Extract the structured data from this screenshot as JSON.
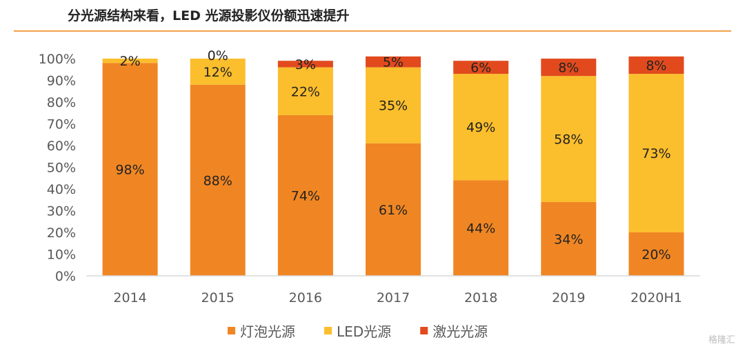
{
  "title": "分光源结构来看，LED 光源投影仪份额迅速提升",
  "watermark": "格隆汇",
  "chart_data": {
    "type": "bar",
    "stacked": true,
    "categories": [
      "2014",
      "2015",
      "2016",
      "2017",
      "2018",
      "2019",
      "2020H1"
    ],
    "series": [
      {
        "name": "灯泡光源",
        "color": "#f08623",
        "values": [
          98,
          88,
          74,
          61,
          44,
          34,
          20
        ],
        "labels": [
          "98%",
          "88%",
          "74%",
          "61%",
          "44%",
          "34%",
          "20%"
        ]
      },
      {
        "name": "LED光源",
        "color": "#fbbe2c",
        "values": [
          2,
          12,
          22,
          35,
          49,
          58,
          73
        ],
        "labels": [
          "2%",
          "12%",
          "22%",
          "35%",
          "49%",
          "58%",
          "73%"
        ]
      },
      {
        "name": "激光光源",
        "color": "#e24a1e",
        "values": [
          0,
          0,
          3,
          5,
          6,
          8,
          8
        ],
        "labels": [
          "",
          "0%",
          "3%",
          "5%",
          "6%",
          "8%",
          "8%"
        ]
      }
    ],
    "ylim": [
      0,
      100
    ],
    "yticks": [
      "0%",
      "10%",
      "20%",
      "30%",
      "40%",
      "50%",
      "60%",
      "70%",
      "80%",
      "90%",
      "100%"
    ],
    "legend": "bottom",
    "grid": false
  }
}
